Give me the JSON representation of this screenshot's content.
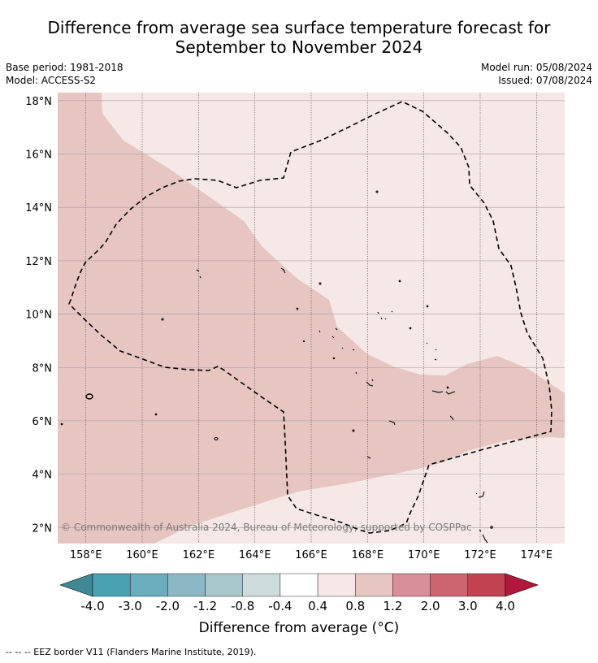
{
  "title_line1": "Difference from average sea surface temperature forecast for",
  "title_line2": "September to November 2024",
  "meta_left": {
    "base_period": "Base period: 1981-2018",
    "model": "Model: ACCESS-S2"
  },
  "meta_right": {
    "model_run": "Model run: 05/08/2024",
    "issued": "Issued: 07/08/2024"
  },
  "map": {
    "lon_ticks": [
      "158°E",
      "160°E",
      "162°E",
      "164°E",
      "166°E",
      "168°E",
      "170°E",
      "172°E",
      "174°E"
    ],
    "lon_values": [
      158,
      160,
      162,
      164,
      166,
      168,
      170,
      172,
      174
    ],
    "lat_ticks": [
      "18°N",
      "16°N",
      "14°N",
      "12°N",
      "10°N",
      "8°N",
      "6°N",
      "4°N",
      "2°N"
    ],
    "lat_values": [
      18,
      16,
      14,
      12,
      10,
      8,
      6,
      4,
      2
    ],
    "lon_range": [
      157.0,
      175.0
    ],
    "lat_range": [
      1.4,
      18.3
    ],
    "copyright": "© Commonwealth of Australia 2024, Bureau of Meteorology; supported by COSPPac",
    "colors": {
      "zone_0_4_0_8": "#f5e8e7",
      "zone_0_8_1_2": "#e7c6c2"
    }
  },
  "colorbar": {
    "ticks": [
      "-4.0",
      "-3.0",
      "-2.0",
      "-1.2",
      "-0.8",
      "-0.4",
      "0.4",
      "0.8",
      "1.2",
      "2.0",
      "3.0",
      "4.0"
    ],
    "colors": [
      "#3f8894",
      "#49a1b3",
      "#6aaebd",
      "#8ab9c5",
      "#a8c7cb",
      "#cedbdc",
      "#ffffff",
      "#f5e8e7",
      "#e7c6c2",
      "#d98f97",
      "#cd6570",
      "#c14352",
      "#b2183c"
    ],
    "label": "Difference from average (°C)"
  },
  "footer": "--  --  -- EEZ border V11 (Flanders Marine Institute, 2019)."
}
